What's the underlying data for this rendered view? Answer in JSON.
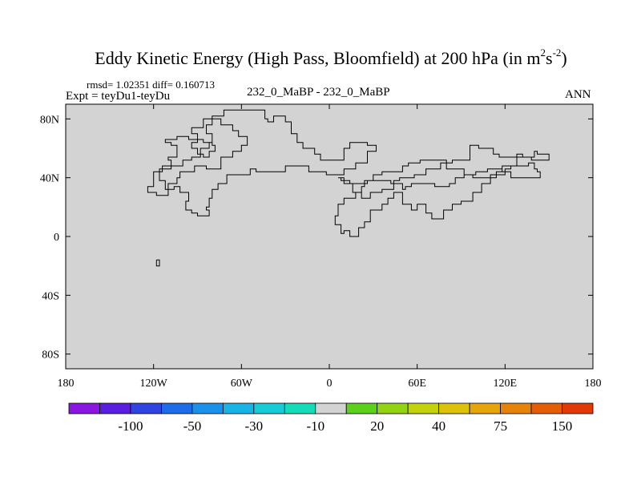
{
  "title": {
    "main": "Eddy Kinetic Energy (High Pass, Bloomfield) at 200 hPa (in m",
    "sup1": "2",
    "mid": "s",
    "sup2": "-2",
    "end": ")"
  },
  "stats": "rmsd= 1.02351 diff= 0.160713",
  "experiment": "Expt = teyDu1-teyDu",
  "case": "232_0_MaBP - 232_0_MaBP",
  "season": "ANN",
  "chart_data": {
    "type": "heatmap",
    "projection": "cylindrical-equidistant",
    "field_color": "#d3d3d3",
    "xlim": [
      -180,
      180
    ],
    "ylim": [
      -90,
      90
    ],
    "x_ticks": [
      {
        "value": -180,
        "label": "180"
      },
      {
        "value": -120,
        "label": "120W"
      },
      {
        "value": -60,
        "label": "60W"
      },
      {
        "value": 0,
        "label": "0"
      },
      {
        "value": 60,
        "label": "60E"
      },
      {
        "value": 120,
        "label": "120E"
      },
      {
        "value": 180,
        "label": "180"
      }
    ],
    "y_ticks": [
      {
        "value": 80,
        "label": "80N"
      },
      {
        "value": 40,
        "label": "40N"
      },
      {
        "value": 0,
        "label": "0"
      },
      {
        "value": -40,
        "label": "40S"
      },
      {
        "value": -80,
        "label": "80S"
      }
    ],
    "colorbar": {
      "colors": [
        "#8a16e2",
        "#5a1ee0",
        "#2f44e0",
        "#1f6ce8",
        "#1a92ea",
        "#19b4e6",
        "#17ccd6",
        "#14dcb6",
        "#d3d3d3",
        "#5cd11c",
        "#94d312",
        "#c2d20c",
        "#dcc20a",
        "#e6a50a",
        "#e58408",
        "#e45e08",
        "#e23a06"
      ],
      "labels": [
        {
          "after_box": 1,
          "label": "-100"
        },
        {
          "after_box": 3,
          "label": "-50"
        },
        {
          "after_box": 5,
          "label": "-30"
        },
        {
          "after_box": 7,
          "label": "-10"
        },
        {
          "after_box": 9,
          "label": "20"
        },
        {
          "after_box": 11,
          "label": "40"
        },
        {
          "after_box": 13,
          "label": "75"
        },
        {
          "after_box": 15,
          "label": "150"
        }
      ]
    },
    "coastlines": [
      [
        [
          -44,
          80
        ],
        [
          -42,
          80
        ],
        [
          -42,
          78
        ],
        [
          -38,
          78
        ],
        [
          -38,
          82
        ],
        [
          -30,
          82
        ],
        [
          -30,
          78
        ],
        [
          -26,
          78
        ],
        [
          -26,
          70
        ],
        [
          -22,
          70
        ],
        [
          -22,
          64
        ],
        [
          -18,
          64
        ],
        [
          -18,
          60
        ],
        [
          -10,
          60
        ],
        [
          -10,
          56
        ],
        [
          -6,
          56
        ],
        [
          -6,
          52
        ],
        [
          10,
          52
        ],
        [
          10,
          60
        ],
        [
          14,
          60
        ],
        [
          14,
          64
        ],
        [
          26,
          64
        ],
        [
          26,
          62
        ],
        [
          32,
          62
        ],
        [
          32,
          58
        ],
        [
          26,
          58
        ],
        [
          26,
          50
        ],
        [
          18,
          50
        ],
        [
          18,
          46
        ],
        [
          10,
          46
        ],
        [
          10,
          42
        ],
        [
          -2,
          42
        ],
        [
          -2,
          44
        ],
        [
          -14,
          44
        ],
        [
          -14,
          48
        ],
        [
          -30,
          48
        ],
        [
          -30,
          44
        ],
        [
          -50,
          44
        ],
        [
          -50,
          46
        ],
        [
          -54,
          46
        ],
        [
          -54,
          42
        ],
        [
          -70,
          42
        ],
        [
          -70,
          36
        ],
        [
          -76,
          36
        ],
        [
          -76,
          32
        ],
        [
          -80,
          32
        ],
        [
          -80,
          26
        ],
        [
          -82,
          26
        ],
        [
          -82,
          20
        ],
        [
          -84,
          20
        ],
        [
          -84,
          18
        ],
        [
          -82,
          18
        ],
        [
          -82,
          14
        ],
        [
          -90,
          14
        ],
        [
          -90,
          16
        ],
        [
          -94,
          16
        ],
        [
          -94,
          18
        ],
        [
          -98,
          18
        ],
        [
          -98,
          24
        ],
        [
          -96,
          24
        ],
        [
          -96,
          30
        ],
        [
          -102,
          30
        ],
        [
          -102,
          34
        ],
        [
          -106,
          34
        ],
        [
          -106,
          32
        ],
        [
          -112,
          32
        ],
        [
          -112,
          38
        ],
        [
          -116,
          38
        ],
        [
          -116,
          44
        ],
        [
          -114,
          44
        ],
        [
          -114,
          48
        ],
        [
          -108,
          48
        ],
        [
          -108,
          52
        ],
        [
          -110,
          52
        ],
        [
          -110,
          54
        ],
        [
          -104,
          54
        ],
        [
          -104,
          62
        ],
        [
          -108,
          62
        ],
        [
          -108,
          64
        ],
        [
          -112,
          64
        ],
        [
          -112,
          66
        ],
        [
          -104,
          66
        ],
        [
          -104,
          68
        ],
        [
          -96,
          68
        ],
        [
          -96,
          66
        ],
        [
          -86,
          66
        ],
        [
          -86,
          64
        ],
        [
          -80,
          64
        ],
        [
          -80,
          62
        ],
        [
          -78,
          62
        ],
        [
          -78,
          58
        ],
        [
          -82,
          58
        ],
        [
          -82,
          54
        ],
        [
          -86,
          54
        ],
        [
          -86,
          56
        ],
        [
          -90,
          56
        ],
        [
          -90,
          60
        ],
        [
          -94,
          60
        ],
        [
          -94,
          64
        ],
        [
          -90,
          64
        ],
        [
          -90,
          70
        ],
        [
          -94,
          70
        ],
        [
          -94,
          74
        ],
        [
          -86,
          74
        ],
        [
          -86,
          80
        ],
        [
          -74,
          80
        ],
        [
          -74,
          76
        ],
        [
          -66,
          76
        ],
        [
          -66,
          72
        ],
        [
          -62,
          72
        ],
        [
          -62,
          68
        ],
        [
          -56,
          68
        ],
        [
          -56,
          62
        ],
        [
          -60,
          62
        ],
        [
          -60,
          58
        ],
        [
          -66,
          58
        ],
        [
          -66,
          54
        ],
        [
          -74,
          54
        ],
        [
          -74,
          46
        ],
        [
          -84,
          46
        ],
        [
          -84,
          48
        ],
        [
          -92,
          48
        ],
        [
          -92,
          44
        ],
        [
          -102,
          44
        ],
        [
          -102,
          40
        ],
        [
          -104,
          40
        ],
        [
          -104,
          36
        ],
        [
          -110,
          36
        ],
        [
          -110,
          28
        ],
        [
          -118,
          28
        ],
        [
          -118,
          30
        ],
        [
          -124,
          30
        ],
        [
          -124,
          34
        ],
        [
          -120,
          34
        ],
        [
          -120,
          44
        ],
        [
          -116,
          44
        ],
        [
          -116,
          46
        ],
        [
          -108,
          46
        ],
        [
          -108,
          48
        ],
        [
          -100,
          48
        ],
        [
          -100,
          52
        ],
        [
          -94,
          52
        ],
        [
          -94,
          54
        ],
        [
          -88,
          54
        ],
        [
          -88,
          60
        ],
        [
          -82,
          60
        ],
        [
          -82,
          64
        ],
        [
          -80,
          64
        ],
        [
          -80,
          70
        ],
        [
          -84,
          70
        ],
        [
          -84,
          76
        ],
        [
          -80,
          76
        ],
        [
          -80,
          82
        ],
        [
          -72,
          82
        ],
        [
          -72,
          86
        ],
        [
          -44,
          86
        ],
        [
          -44,
          80
        ]
      ],
      [
        [
          -118,
          -16
        ],
        [
          -116,
          -16
        ],
        [
          -116,
          -20
        ],
        [
          -118,
          -20
        ],
        [
          -118,
          -16
        ]
      ],
      [
        [
          6,
          40
        ],
        [
          10,
          40
        ],
        [
          10,
          36
        ],
        [
          16,
          36
        ],
        [
          16,
          30
        ],
        [
          22,
          30
        ],
        [
          22,
          26
        ],
        [
          28,
          26
        ],
        [
          28,
          30
        ],
        [
          36,
          30
        ],
        [
          36,
          32
        ],
        [
          44,
          32
        ],
        [
          44,
          38
        ],
        [
          48,
          38
        ],
        [
          48,
          40
        ],
        [
          58,
          40
        ],
        [
          58,
          42
        ],
        [
          66,
          42
        ],
        [
          66,
          46
        ],
        [
          76,
          46
        ],
        [
          76,
          50
        ],
        [
          84,
          50
        ],
        [
          84,
          52
        ],
        [
          96,
          52
        ],
        [
          96,
          62
        ],
        [
          102,
          62
        ],
        [
          102,
          60
        ],
        [
          112,
          60
        ],
        [
          112,
          56
        ],
        [
          116,
          56
        ],
        [
          116,
          54
        ],
        [
          128,
          54
        ],
        [
          128,
          56
        ],
        [
          132,
          56
        ],
        [
          132,
          54
        ],
        [
          138,
          54
        ],
        [
          138,
          52
        ],
        [
          150,
          52
        ],
        [
          150,
          56
        ],
        [
          142,
          56
        ],
        [
          142,
          58
        ],
        [
          140,
          58
        ],
        [
          140,
          54
        ],
        [
          128,
          54
        ],
        [
          128,
          48
        ],
        [
          118,
          48
        ],
        [
          118,
          44
        ],
        [
          114,
          44
        ],
        [
          114,
          40
        ],
        [
          110,
          40
        ],
        [
          110,
          36
        ],
        [
          104,
          36
        ],
        [
          104,
          30
        ],
        [
          98,
          30
        ],
        [
          98,
          24
        ],
        [
          90,
          24
        ],
        [
          90,
          22
        ],
        [
          84,
          22
        ],
        [
          84,
          18
        ],
        [
          78,
          18
        ],
        [
          78,
          12
        ],
        [
          70,
          12
        ],
        [
          70,
          16
        ],
        [
          66,
          16
        ],
        [
          66,
          22
        ],
        [
          60,
          22
        ],
        [
          60,
          18
        ],
        [
          56,
          18
        ],
        [
          56,
          22
        ],
        [
          50,
          22
        ],
        [
          50,
          30
        ],
        [
          44,
          30
        ],
        [
          44,
          26
        ],
        [
          40,
          26
        ],
        [
          40,
          22
        ],
        [
          36,
          22
        ],
        [
          36,
          18
        ],
        [
          28,
          18
        ],
        [
          28,
          10
        ],
        [
          24,
          10
        ],
        [
          24,
          6
        ],
        [
          20,
          6
        ],
        [
          20,
          0
        ],
        [
          14,
          0
        ],
        [
          14,
          4
        ],
        [
          10,
          4
        ],
        [
          10,
          2
        ],
        [
          8,
          2
        ],
        [
          8,
          8
        ],
        [
          4,
          8
        ],
        [
          4,
          14
        ],
        [
          6,
          14
        ],
        [
          6,
          22
        ],
        [
          10,
          22
        ],
        [
          10,
          26
        ],
        [
          18,
          26
        ],
        [
          18,
          30
        ],
        [
          22,
          30
        ],
        [
          22,
          34
        ],
        [
          24,
          34
        ],
        [
          24,
          38
        ],
        [
          30,
          38
        ],
        [
          30,
          42
        ],
        [
          36,
          42
        ],
        [
          36,
          44
        ],
        [
          50,
          44
        ],
        [
          50,
          48
        ],
        [
          54,
          48
        ],
        [
          54,
          50
        ],
        [
          62,
          50
        ],
        [
          62,
          52
        ],
        [
          80,
          52
        ],
        [
          80,
          46
        ],
        [
          92,
          46
        ],
        [
          92,
          42
        ],
        [
          98,
          42
        ],
        [
          98,
          40
        ],
        [
          110,
          40
        ],
        [
          110,
          42
        ],
        [
          120,
          42
        ],
        [
          120,
          46
        ],
        [
          124,
          46
        ],
        [
          124,
          48
        ],
        [
          136,
          48
        ],
        [
          136,
          50
        ],
        [
          140,
          50
        ],
        [
          140,
          46
        ],
        [
          142,
          46
        ],
        [
          142,
          44
        ],
        [
          144,
          44
        ],
        [
          144,
          40
        ],
        [
          124,
          40
        ],
        [
          124,
          44
        ],
        [
          118,
          44
        ],
        [
          118,
          46
        ],
        [
          108,
          46
        ],
        [
          108,
          44
        ],
        [
          100,
          44
        ],
        [
          100,
          42
        ],
        [
          92,
          42
        ],
        [
          92,
          40
        ],
        [
          86,
          40
        ],
        [
          86,
          36
        ],
        [
          82,
          36
        ],
        [
          82,
          34
        ],
        [
          72,
          34
        ],
        [
          72,
          36
        ],
        [
          56,
          36
        ],
        [
          56,
          34
        ],
        [
          52,
          34
        ],
        [
          52,
          32
        ],
        [
          50,
          32
        ],
        [
          50,
          36
        ],
        [
          42,
          36
        ],
        [
          42,
          38
        ],
        [
          26,
          38
        ],
        [
          26,
          36
        ],
        [
          14,
          36
        ],
        [
          14,
          38
        ],
        [
          8,
          38
        ],
        [
          8,
          40
        ],
        [
          6,
          40
        ]
      ]
    ]
  }
}
